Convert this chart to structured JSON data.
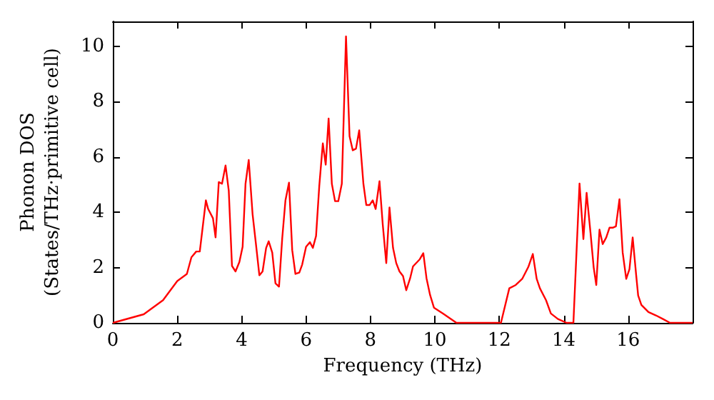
{
  "chart_data": {
    "type": "line",
    "xlabel": "Frequency (THz)",
    "ylabel": "Phonon DOS\n(States/THz·primitive cell)",
    "color": "#ff0000",
    "grid": false,
    "x": [
      0,
      0.96,
      1.56,
      2.0,
      2.3,
      2.44,
      2.59,
      2.7,
      2.89,
      2.96,
      3.11,
      3.19,
      3.29,
      3.39,
      3.5,
      3.6,
      3.7,
      3.81,
      3.93,
      4.03,
      4.12,
      4.22,
      4.34,
      4.44,
      4.55,
      4.65,
      4.76,
      4.84,
      4.95,
      5.05,
      5.16,
      5.26,
      5.36,
      5.47,
      5.57,
      5.67,
      5.79,
      5.88,
      6.0,
      6.12,
      6.21,
      6.31,
      6.41,
      6.52,
      6.61,
      6.7,
      6.8,
      6.9,
      7.0,
      7.11,
      7.24,
      7.35,
      7.45,
      7.55,
      7.65,
      7.78,
      7.87,
      7.97,
      8.07,
      8.16,
      8.28,
      8.38,
      8.49,
      8.59,
      8.7,
      8.8,
      8.9,
      9.01,
      9.11,
      9.23,
      9.32,
      9.53,
      9.64,
      9.74,
      9.85,
      9.97,
      10.26,
      10.67,
      12.05,
      12.31,
      12.51,
      12.71,
      12.9,
      13.04,
      13.16,
      13.26,
      13.45,
      13.6,
      13.82,
      14.09,
      14.3,
      14.49,
      14.61,
      14.71,
      14.83,
      14.93,
      15.01,
      15.11,
      15.21,
      15.32,
      15.42,
      15.52,
      15.62,
      15.73,
      15.83,
      15.94,
      16.04,
      16.14,
      16.25,
      16.31,
      16.41,
      16.63,
      16.86,
      17.08,
      17.3,
      18
    ],
    "values": [
      0,
      0.31,
      0.82,
      1.51,
      1.77,
      2.37,
      2.58,
      2.58,
      4.43,
      4.12,
      3.78,
      3.09,
      5.09,
      5.03,
      5.69,
      4.78,
      2.06,
      1.86,
      2.2,
      2.75,
      5.03,
      5.89,
      3.92,
      2.89,
      1.72,
      1.86,
      2.71,
      2.95,
      2.54,
      1.43,
      1.31,
      3.06,
      4.43,
      5.07,
      2.63,
      1.77,
      1.82,
      2.11,
      2.75,
      2.92,
      2.71,
      3.14,
      4.95,
      6.49,
      5.72,
      7.39,
      5.03,
      4.4,
      4.4,
      5.03,
      10.36,
      6.75,
      6.24,
      6.3,
      6.96,
      5.03,
      4.26,
      4.26,
      4.43,
      4.12,
      5.12,
      3.57,
      2.16,
      4.17,
      2.71,
      2.16,
      1.86,
      1.69,
      1.18,
      1.61,
      2.04,
      2.3,
      2.52,
      1.61,
      1.01,
      0.55,
      0.33,
      0,
      0,
      1.25,
      1.37,
      1.59,
      2.02,
      2.49,
      1.59,
      1.25,
      0.82,
      0.34,
      0.14,
      0,
      0,
      5.04,
      3.03,
      4.7,
      3.27,
      2.0,
      1.37,
      3.37,
      2.85,
      3.09,
      3.44,
      3.44,
      3.49,
      4.47,
      2.54,
      1.59,
      1.94,
      3.09,
      1.71,
      0.99,
      0.65,
      0.39,
      0.27,
      0.14,
      0,
      0
    ],
    "xlim": [
      0,
      18
    ],
    "ylim": [
      0,
      10.9
    ],
    "xticks": [
      0,
      2,
      4,
      6,
      8,
      10,
      12,
      14,
      16
    ],
    "yticks": [
      0,
      2,
      4,
      6,
      8,
      10
    ]
  }
}
